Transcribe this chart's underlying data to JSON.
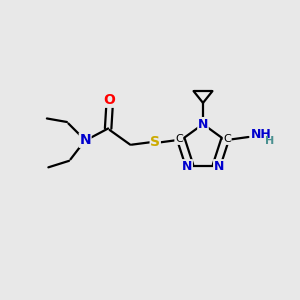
{
  "background_color": "#e8e8e8",
  "atom_colors": {
    "C": "#000000",
    "N": "#0000cd",
    "O": "#ff0000",
    "S": "#ccaa00",
    "H": "#4a9090"
  },
  "bond_color": "#000000",
  "bond_width": 1.6,
  "fig_w": 3.0,
  "fig_h": 3.0,
  "dpi": 100,
  "xlim": [
    0,
    10
  ],
  "ylim": [
    0,
    10
  ]
}
